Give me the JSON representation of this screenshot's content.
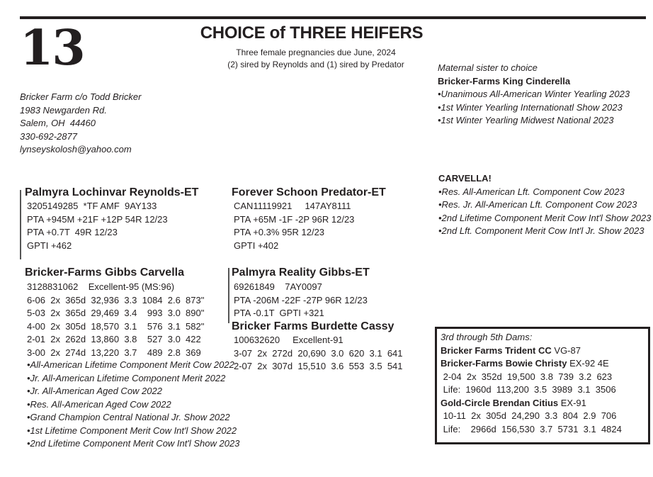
{
  "lot_number": "13",
  "title": "CHOICE of THREE HEIFERS",
  "subtitle": [
    "Three female pregnancies due June, 2024",
    "(2) sired by Reynolds and (1) sired by Predator"
  ],
  "consignor": [
    "Bricker Farm c/o Todd Bricker",
    "1983 Newgarden Rd.",
    "Salem, OH  44460",
    "330-692-2877",
    "lynseyskolosh@yahoo.com"
  ],
  "sister": {
    "label": "Maternal sister to choice",
    "name": "Bricker-Farms King Cinderella",
    "awards": [
      "•Unanimous All-American Winter Yearling 2023",
      "•1st Winter Yearling Internationatl Show 2023",
      "•1st Winter Yearling Midwest National 2023"
    ]
  },
  "carvella_note": {
    "heading": "CARVELLA!",
    "awards": [
      "•Res. All-American Lft. Component Cow 2023",
      "•Res. Jr. All-American Lft. Component Cow 2023",
      "•2nd Lifetime Component Merit Cow Int'l Show 2023",
      "•2nd Lft. Component Merit Cow Int'l Jr. Show 2023"
    ]
  },
  "sire1": {
    "name": "Palmyra Lochinvar Reynolds-ET",
    "lines": [
      "3205149285  *TF AMF  9AY133",
      "PTA +945M +21F +12P 54R 12/23",
      "PTA +0.7T  49R 12/23",
      "GPTI +462"
    ]
  },
  "dam": {
    "name": "Bricker-Farms Gibbs Carvella",
    "lines": [
      "3128831062    Excellent-95 (MS:96)",
      "6-06  2x  365d  32,936  3.3  1084  2.6  873\"",
      "5-03  2x  365d  29,469  3.4    993  3.0  890\"",
      "4-00  2x  305d  18,570  3.1    576  3.1  582\"",
      "2-01  2x  262d  13,860  3.8    527  3.0  422",
      "3-00  2x  274d  13,220  3.7    489  2.8  369"
    ],
    "awards": [
      "•All-American Lifetime Component Merit Cow 2022",
      "•Jr. All-American Lifetime Component Merit 2022",
      "•Jr. All-American Aged Cow 2022",
      "•Res. All-American Aged Cow 2022",
      "•Grand Champion Central National Jr. Show 2022",
      "•1st Lifetime Component Merit Cow Int'l Show 2022",
      "•2nd Lifetime Component Merit Cow Int'l Show 2023"
    ]
  },
  "sire2": {
    "name": "Forever Schoon Predator-ET",
    "lines": [
      "CAN11119921     147AY8111",
      "PTA +65M -1F -2P 96R 12/23",
      "PTA +0.3% 95R 12/23",
      "GPTI +402"
    ]
  },
  "dam_sire": {
    "name": "Palmyra Reality Gibbs-ET",
    "lines": [
      "69261849    7AY0097",
      "PTA -206M -22F -27P 96R 12/23",
      "PTA -0.1T  GPTI +321"
    ]
  },
  "granddam": {
    "name": "Bricker Farms Burdette Cassy",
    "lines": [
      "100632620     Excellent-91",
      "3-07  2x  272d  20,690  3.0  620  3.1  641",
      "2-07  2x  307d  15,510  3.6  553  3.5  541"
    ]
  },
  "dams_box": {
    "heading": "3rd through 5th Dams:",
    "dam3": {
      "name": "Bricker Farms Trident CC",
      "score": " VG-87"
    },
    "dam4": {
      "name": "Bricker-Farms Bowie Christy",
      "score": " EX-92 4E",
      "lines": [
        " 2-04  2x  352d  19,500  3.8  739  3.2  623",
        " Life:  1960d  113,200  3.5  3989  3.1  3506"
      ]
    },
    "dam5": {
      "name": "Gold-Circle Brendan Citius",
      "score": " EX-91",
      "lines": [
        " 10-11  2x  305d  24,290  3.3  804  2.9  706",
        " Life:    2966d  156,530  3.7  5731  3.1  4824"
      ]
    }
  }
}
